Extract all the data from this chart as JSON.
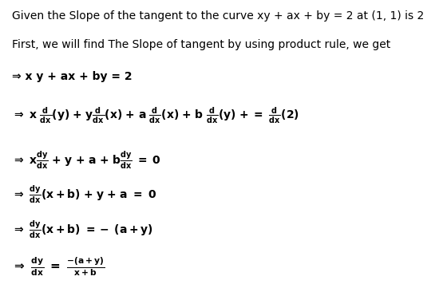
{
  "background_color": "#ffffff",
  "text_color": "#000000",
  "figsize": [
    5.55,
    3.71
  ],
  "dpi": 100,
  "font_size": 10.0,
  "line1": "Given the Slope of the tangent to the curve xy + ax + by = 2 at (1, 1) is 2",
  "line2": "First, we will find The Slope of tangent by using product rule, we get",
  "line3": "⇒ x y + ax + by = 2",
  "line4_arrow": "⇒ x",
  "line5_arrow": "⇒ x",
  "line6_arrow": "⇒",
  "line7_arrow": "⇒",
  "line8_arrow": "⇒"
}
